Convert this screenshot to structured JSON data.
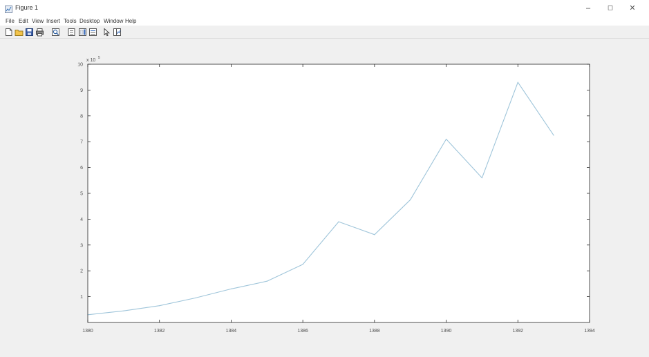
{
  "window": {
    "title": "Figure 1",
    "controls": {
      "minimize": "–",
      "maximize": "◻",
      "close": "✕"
    }
  },
  "menubar": {
    "items": [
      "File",
      "Edit",
      "View",
      "Insert",
      "Tools",
      "Desktop",
      "Window",
      "Help"
    ]
  },
  "toolbar": {
    "buttons": [
      {
        "name": "new-figure-icon",
        "icon": "new-document"
      },
      {
        "name": "open-file-icon",
        "icon": "folder"
      },
      {
        "name": "save-figure-icon",
        "icon": "floppy-disk"
      },
      {
        "name": "print-figure-icon",
        "icon": "printer"
      },
      {
        "name": "zoom-icon",
        "icon": "magnifier"
      },
      {
        "name": "link-plot-icon",
        "icon": "link"
      },
      {
        "name": "insert-colorbar-icon",
        "icon": "colorbar"
      },
      {
        "name": "insert-legend-icon",
        "icon": "legend"
      },
      {
        "name": "edit-plot-icon",
        "icon": "arrow-pointer"
      },
      {
        "name": "show-plot-tools-icon",
        "icon": "plot-tools"
      }
    ]
  },
  "colors": {
    "line": "#9fc5da",
    "axes_bg": "#ffffff",
    "figure_bg": "#f0f0f0",
    "axis": "#262626"
  },
  "chart_data": {
    "type": "line",
    "title": "",
    "xlabel": "",
    "ylabel": "",
    "exponent_label": "x 10",
    "exponent": "5",
    "xlim": [
      1380,
      1394
    ],
    "ylim": [
      0,
      10
    ],
    "xticks": [
      "1380",
      "1382",
      "1384",
      "1386",
      "1388",
      "1390",
      "1392",
      "1394"
    ],
    "yticks": [
      "1",
      "2",
      "3",
      "4",
      "5",
      "6",
      "7",
      "8",
      "9",
      "10"
    ],
    "grid": false,
    "series": [
      {
        "x": [
          1380,
          1381,
          1382,
          1383,
          1384,
          1385,
          1386,
          1387,
          1388,
          1389,
          1390,
          1391,
          1392,
          1393
        ],
        "y": [
          0.3,
          0.45,
          0.65,
          0.95,
          1.3,
          1.6,
          2.25,
          3.9,
          3.4,
          4.75,
          7.1,
          5.6,
          9.3,
          7.25
        ]
      }
    ]
  }
}
